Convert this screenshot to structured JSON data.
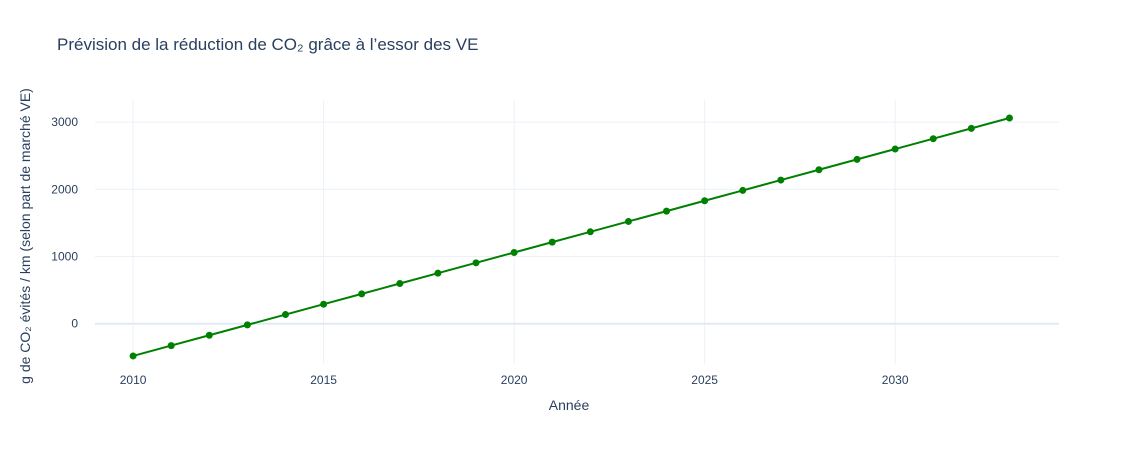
{
  "chart_data": {
    "type": "line",
    "title": "Prévision de la réduction de CO₂ grâce à l’essor des VE",
    "xlabel": "Année",
    "ylabel": "g de CO₂ évités / km (selon part de marché VE)",
    "xlim": [
      2009,
      2034.3
    ],
    "ylim": [
      -600,
      3330
    ],
    "xticks": [
      2010,
      2015,
      2020,
      2025,
      2030
    ],
    "yticks": [
      0,
      1000,
      2000,
      3000
    ],
    "grid": true,
    "series": [
      {
        "name": "Réduction CO₂",
        "color": "#008000",
        "x": [
          2010,
          2011,
          2012,
          2013,
          2014,
          2015,
          2016,
          2017,
          2018,
          2019,
          2020,
          2021,
          2022,
          2023,
          2024,
          2025,
          2026,
          2027,
          2028,
          2029,
          2030,
          2031,
          2032,
          2033
        ],
        "y": [
          -480,
          -326,
          -172,
          -18,
          136,
          290,
          444,
          598,
          752,
          906,
          1060,
          1214,
          1368,
          1522,
          1676,
          1830,
          1984,
          2138,
          2292,
          2446,
          2600,
          2754,
          2908,
          3062
        ]
      }
    ]
  }
}
